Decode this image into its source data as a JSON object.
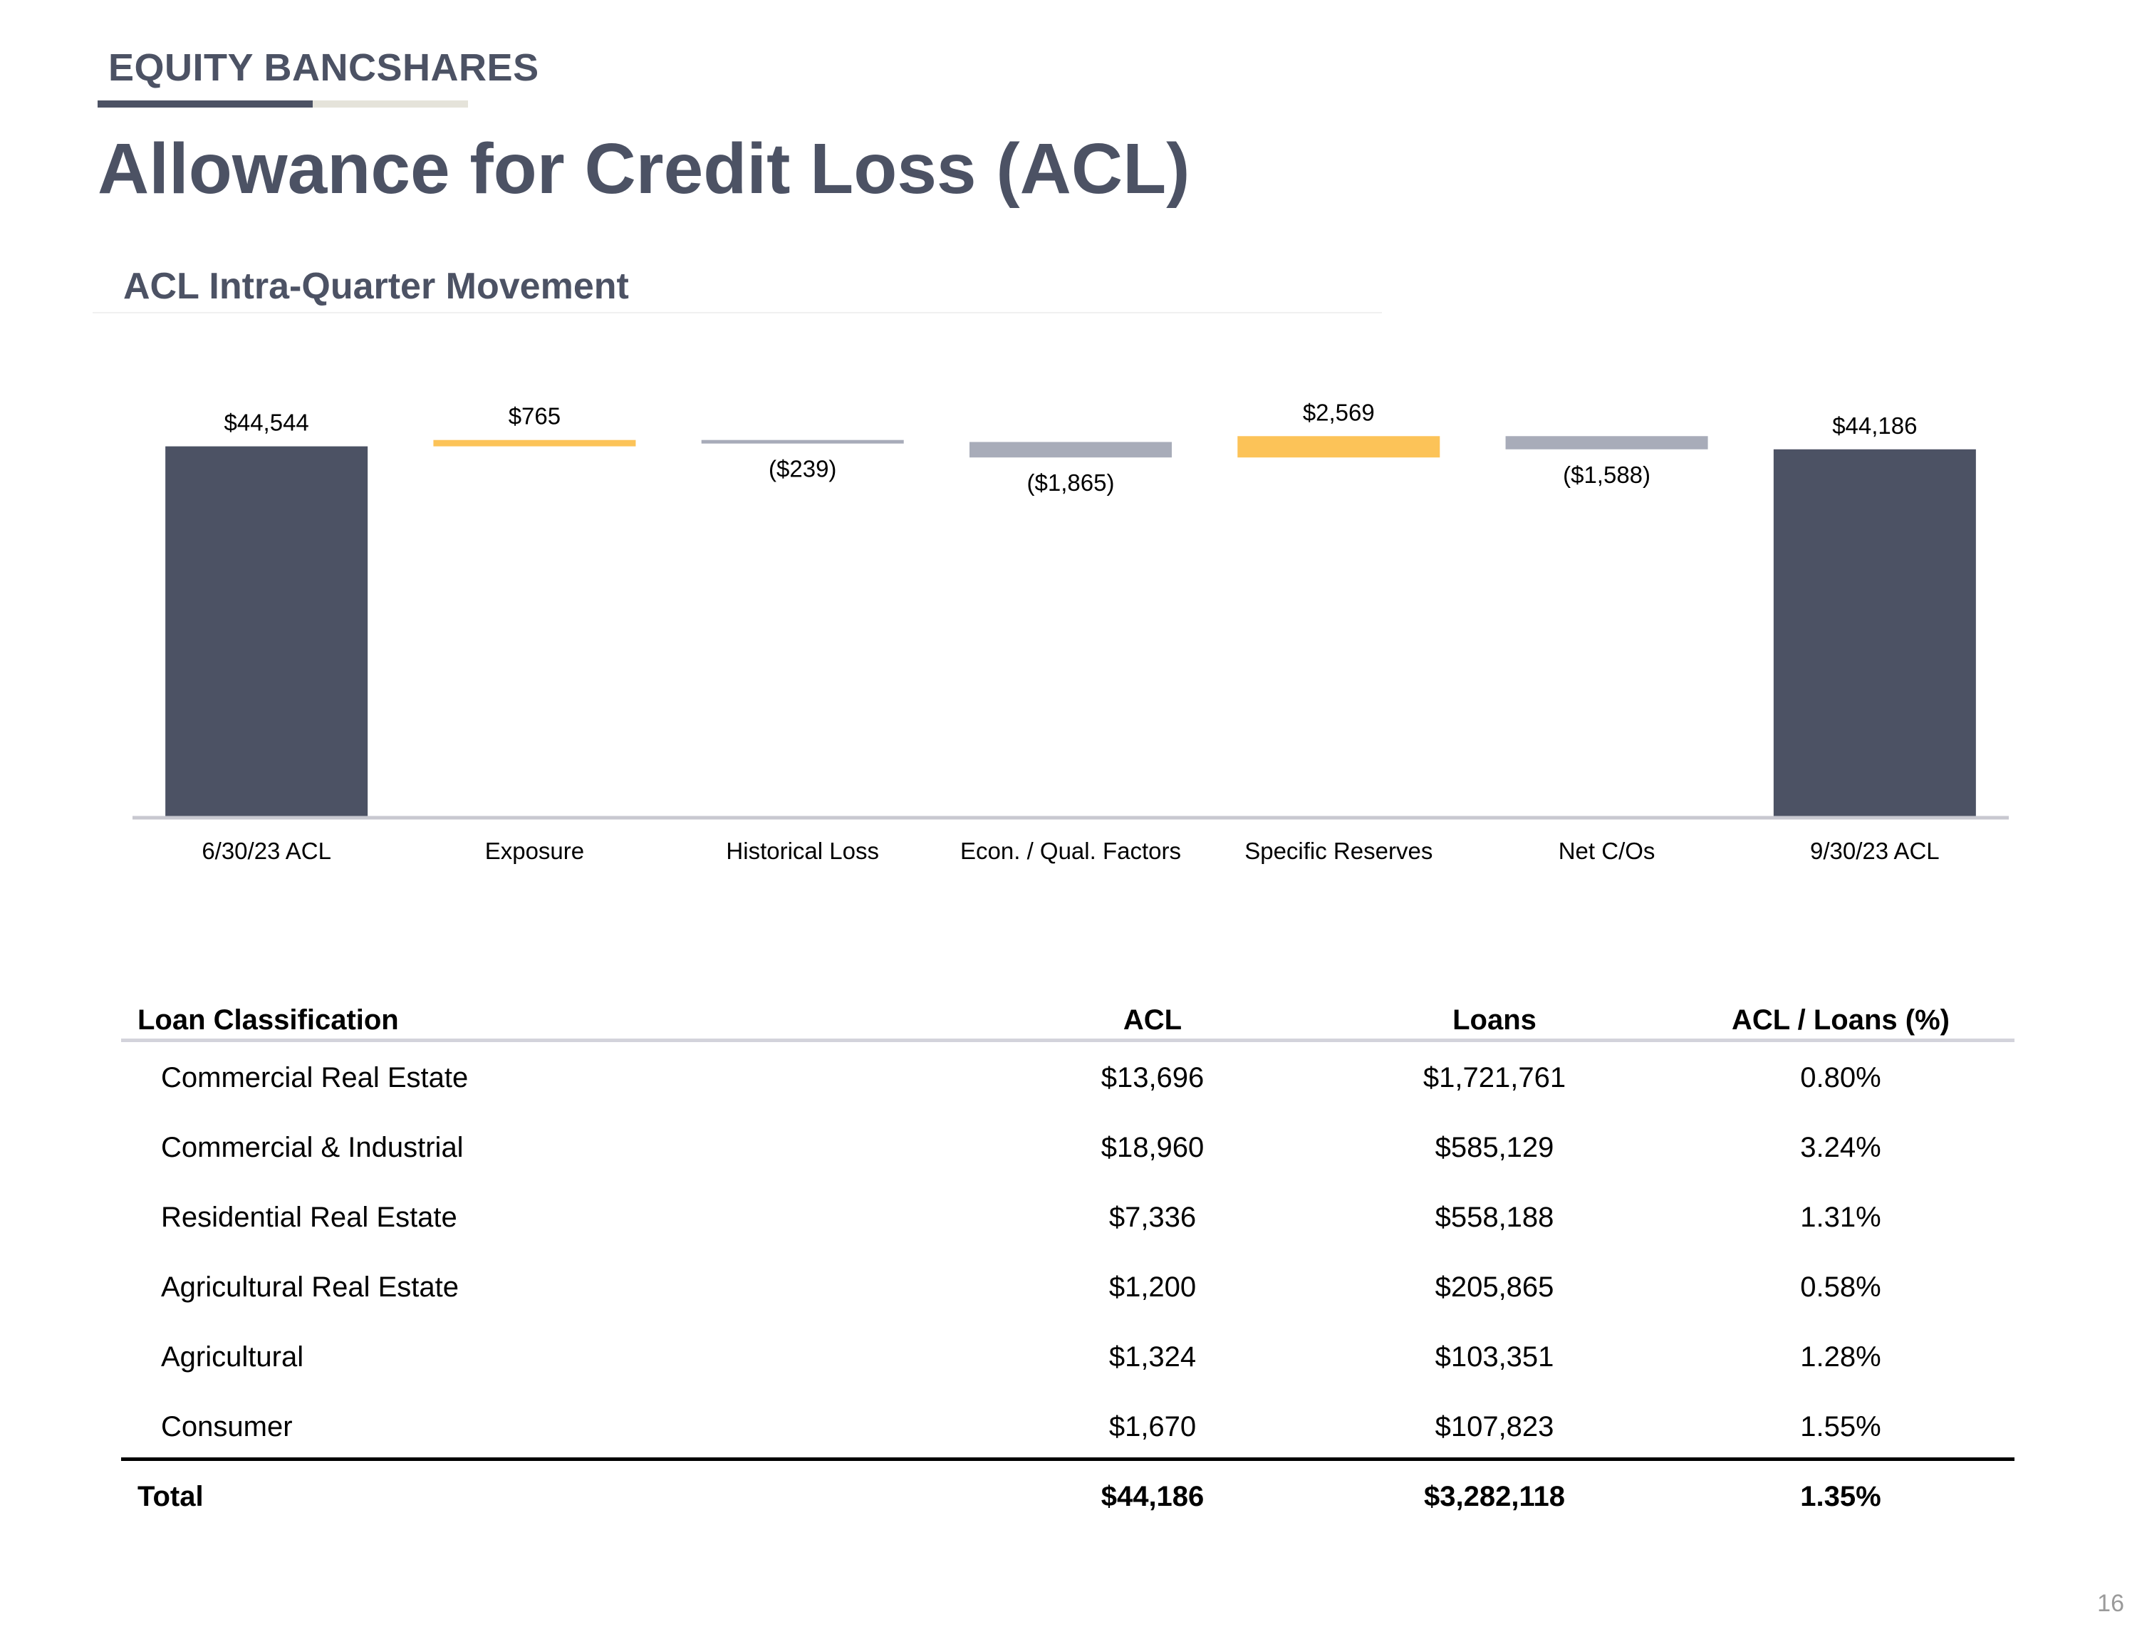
{
  "header": {
    "brand": "EQUITY BANCSHARES",
    "title": "Allowance for Credit Loss (ACL)",
    "section_title": "ACL Intra-Quarter Movement"
  },
  "colors": {
    "total_bar": "#4c5264",
    "increase_bar": "#fcc358",
    "decrease_bar": "#a8acb9",
    "axis": "#c8c8d0",
    "heading_text": "#4c5264"
  },
  "chart_data": {
    "type": "bar",
    "subtype": "waterfall",
    "title": "",
    "xlabel": "",
    "ylabel": "",
    "categories": [
      "6/30/23 ACL",
      "Exposure",
      "Historical Loss",
      "Econ. / Qual. Factors",
      "Specific Reserves",
      "Net C/Os",
      "9/30/23 ACL"
    ],
    "values": [
      44544,
      765,
      -239,
      -1865,
      2569,
      -1588,
      44186
    ],
    "kinds": [
      "total",
      "increase",
      "decrease",
      "decrease",
      "increase",
      "decrease",
      "total"
    ],
    "labels": [
      "$44,544",
      "$765",
      "($239)",
      "($1,865)",
      "$2,569",
      "($1,588)",
      "$44,186"
    ],
    "ylim": [
      0,
      49000
    ],
    "grid": false,
    "legend": "none"
  },
  "table": {
    "headers": [
      "Loan Classification",
      "ACL",
      "Loans",
      "ACL / Loans (%)"
    ],
    "rows": [
      [
        "Commercial Real Estate",
        "$13,696",
        "$1,721,761",
        "0.80%"
      ],
      [
        "Commercial & Industrial",
        "$18,960",
        "$585,129",
        "3.24%"
      ],
      [
        "Residential Real Estate",
        "$7,336",
        "$558,188",
        "1.31%"
      ],
      [
        "Agricultural Real Estate",
        "$1,200",
        "$205,865",
        "0.58%"
      ],
      [
        "Agricultural",
        "$1,324",
        "$103,351",
        "1.28%"
      ],
      [
        "Consumer",
        "$1,670",
        "$107,823",
        "1.55%"
      ]
    ],
    "total": [
      "Total",
      "$44,186",
      "$3,282,118",
      "1.35%"
    ]
  },
  "footer": {
    "page_number": "16"
  }
}
